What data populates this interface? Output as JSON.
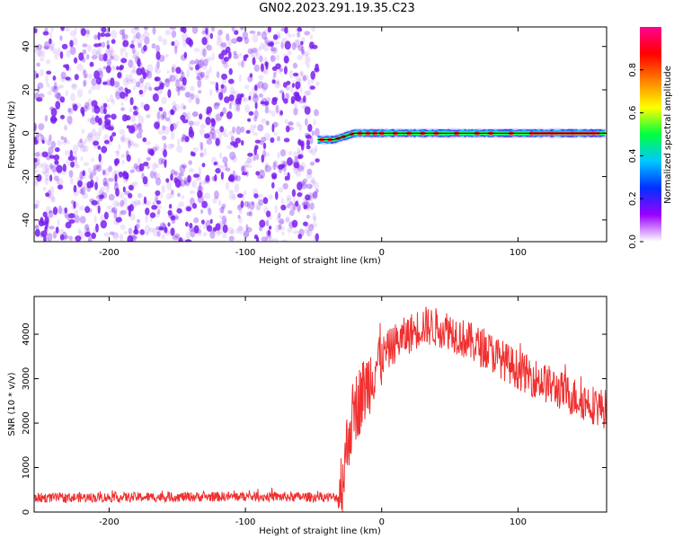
{
  "title": "GN02.2023.291.19.35.C23",
  "colors": {
    "snr_line": "#f03030",
    "spectrogram_noise": "#7a1ff0",
    "ridge": "#000000"
  },
  "chart_data": [
    {
      "type": "heatmap",
      "name": "spectrogram",
      "xlabel": "Height of straight line (km)",
      "ylabel": "Frequency (Hz)",
      "xlim": [
        -255,
        165
      ],
      "ylim": [
        -50,
        49
      ],
      "xticks": [
        -200,
        -100,
        0,
        100
      ],
      "yticks": [
        -40,
        -20,
        0,
        20,
        40
      ],
      "noise_region_x": [
        -255,
        -47
      ],
      "signal_start_x": -47,
      "ridge": {
        "x": [
          -47,
          -40,
          -35,
          -30,
          -25,
          -20,
          -15,
          -10,
          0,
          10,
          20,
          40,
          60,
          80,
          100,
          120,
          140,
          165
        ],
        "y": [
          -3,
          -3,
          -3,
          -2,
          -1,
          0,
          0,
          0,
          0,
          0,
          0,
          0,
          0,
          0,
          0,
          0,
          0,
          0
        ]
      },
      "colorbar": {
        "label": "Normalized spectral amplitude",
        "ticks": [
          0.0,
          0.2,
          0.4,
          0.6,
          0.8
        ],
        "range": [
          0,
          1
        ],
        "stops": [
          "#ffffff",
          "#9a00ff",
          "#0030ff",
          "#00c8ff",
          "#00ff40",
          "#ffff00",
          "#ff8000",
          "#ff0000",
          "#ff0090"
        ]
      },
      "grid": false
    },
    {
      "type": "line",
      "name": "snr",
      "xlabel": "Height of straight line (km)",
      "ylabel": "SNR (10 * v/v)",
      "xlim": [
        -255,
        165
      ],
      "ylim": [
        0,
        4850
      ],
      "xticks": [
        -200,
        -100,
        0,
        100
      ],
      "yticks": [
        0,
        1000,
        2000,
        3000,
        4000
      ],
      "envelope": {
        "x": [
          -255,
          -200,
          -150,
          -100,
          -60,
          -32,
          -28,
          -24,
          -20,
          -15,
          -10,
          -5,
          0,
          10,
          20,
          30,
          40,
          50,
          60,
          80,
          100,
          120,
          140,
          165
        ],
        "y": [
          320,
          330,
          340,
          350,
          340,
          330,
          900,
          1800,
          2300,
          2600,
          2900,
          3300,
          3500,
          3800,
          4000,
          4200,
          4150,
          4100,
          3900,
          3600,
          3200,
          2900,
          2600,
          2300
        ]
      },
      "grid": false
    }
  ]
}
